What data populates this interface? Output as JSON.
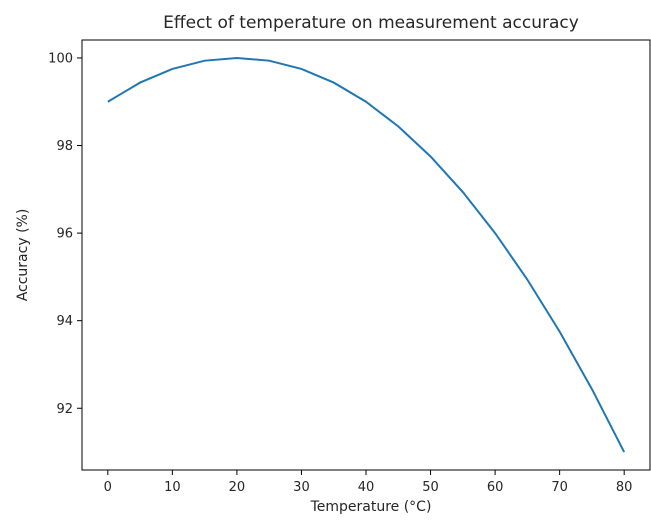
{
  "chart_data": {
    "type": "line",
    "title": "Effect of temperature on measurement accuracy",
    "xlabel": "Temperature (°C)",
    "ylabel": "Accuracy (%)",
    "xlim": [
      -4,
      84
    ],
    "ylim": [
      90.59,
      100.41
    ],
    "xticks": [
      0,
      10,
      20,
      30,
      40,
      50,
      60,
      70,
      80
    ],
    "yticks": [
      92,
      94,
      96,
      98,
      100
    ],
    "grid": false,
    "series": [
      {
        "color": "#1f77b4",
        "x": [
          0,
          5,
          10,
          15,
          20,
          25,
          30,
          35,
          40,
          45,
          50,
          55,
          60,
          65,
          70,
          75,
          80
        ],
        "y": [
          99.0,
          99.4375,
          99.75,
          99.9375,
          100.0,
          99.9375,
          99.75,
          99.4375,
          99.0,
          98.4375,
          97.75,
          96.9375,
          96.0,
          94.9375,
          93.75,
          92.4375,
          91.0
        ]
      }
    ]
  }
}
